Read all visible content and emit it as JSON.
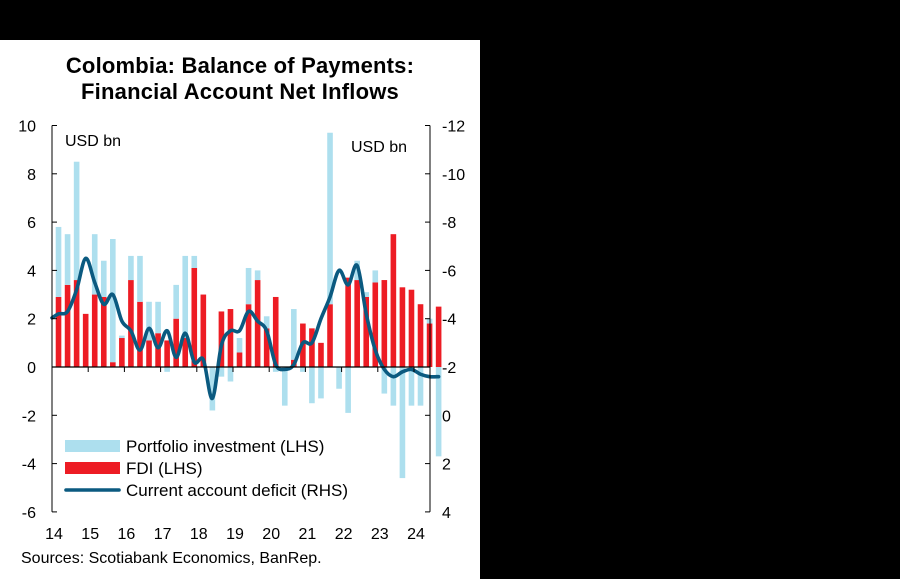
{
  "title_line1": "Colombia: Balance of Payments:",
  "title_line2": "Financial Account Net Inflows",
  "source": "Sources: Scotiabank Economics, BanRep.",
  "colors": {
    "portfolio": "#ADDFEE",
    "fdi": "#ED1C24",
    "cad": "#0B5A80",
    "background": "#FFFFFF",
    "outer": "#000000"
  },
  "chart_data": {
    "type": "bar",
    "title": "Colombia: Balance of Payments: Financial Account Net Inflows",
    "xlabel": "",
    "ylabel_left": "USD bn",
    "ylabel_right": "USD bn",
    "ylim_left": [
      -6,
      10
    ],
    "ylim_right": [
      4,
      -12
    ],
    "right_axis_inverted": true,
    "yticks_left": [
      "10",
      "8",
      "6",
      "4",
      "2",
      "0",
      "-2",
      "-4",
      "-6"
    ],
    "yticks_right": [
      "-12",
      "-10",
      "-8",
      "-6",
      "-4",
      "-2",
      "0",
      "2",
      "4"
    ],
    "xticks": [
      "14",
      "15",
      "16",
      "17",
      "18",
      "19",
      "20",
      "21",
      "22",
      "23",
      "24"
    ],
    "grid": false,
    "legend_position": "lower-left inside",
    "legend": [
      "Portfolio investment (LHS)",
      "FDI (LHS)",
      "Current account deficit (RHS)"
    ],
    "categories": [
      "2014Q1",
      "2014Q2",
      "2014Q3",
      "2014Q4",
      "2015Q1",
      "2015Q2",
      "2015Q3",
      "2015Q4",
      "2016Q1",
      "2016Q2",
      "2016Q3",
      "2016Q4",
      "2017Q1",
      "2017Q2",
      "2017Q3",
      "2017Q4",
      "2018Q1",
      "2018Q2",
      "2018Q3",
      "2018Q4",
      "2019Q1",
      "2019Q2",
      "2019Q3",
      "2019Q4",
      "2020Q1",
      "2020Q2",
      "2020Q3",
      "2020Q4",
      "2021Q1",
      "2021Q2",
      "2021Q3",
      "2021Q4",
      "2022Q1",
      "2022Q2",
      "2022Q3",
      "2022Q4",
      "2023Q1",
      "2023Q2",
      "2023Q3",
      "2023Q4",
      "2024Q1",
      "2024Q2",
      "2024Q3"
    ],
    "series": [
      {
        "name": "FDI (LHS)",
        "axis": "left",
        "values": [
          2.9,
          3.4,
          3.6,
          2.2,
          3.0,
          2.9,
          0.2,
          1.2,
          3.6,
          2.7,
          1.1,
          1.4,
          1.1,
          2.0,
          1.2,
          4.1,
          3.0,
          0.0,
          2.3,
          2.4,
          0.6,
          2.6,
          3.6,
          1.6,
          2.9,
          0.0,
          0.3,
          1.8,
          1.6,
          1.0,
          2.6,
          0.0,
          3.7,
          3.6,
          2.9,
          3.5,
          3.6,
          5.5,
          3.3,
          3.2,
          2.6,
          1.8,
          2.5
        ]
      },
      {
        "name": "Portfolio investment (LHS)",
        "axis": "left",
        "values": [
          2.9,
          2.1,
          4.9,
          0.0,
          2.5,
          1.5,
          5.1,
          0.1,
          1.0,
          1.9,
          1.6,
          1.3,
          -0.2,
          1.4,
          3.4,
          0.5,
          0.0,
          -1.8,
          -0.4,
          -0.6,
          0.6,
          1.5,
          0.4,
          0.5,
          -0.2,
          -1.6,
          2.1,
          -0.2,
          -1.5,
          -1.3,
          7.1,
          -0.9,
          -1.9,
          0.8,
          0.2,
          0.5,
          -1.1,
          -1.6,
          -4.6,
          -1.6,
          -1.6,
          0.2,
          -3.7
        ]
      },
      {
        "name": "Current account deficit (RHS)",
        "axis": "right",
        "values": [
          -4.2,
          -4.3,
          -5.2,
          -6.5,
          -5.5,
          -4.6,
          -5.0,
          -3.9,
          -3.5,
          -2.7,
          -3.6,
          -2.8,
          -3.5,
          -2.4,
          -3.4,
          -2.2,
          -2.3,
          -0.7,
          -2.9,
          -3.5,
          -3.5,
          -4.3,
          -3.9,
          -3.5,
          -2.1,
          -1.9,
          -2.1,
          -3.0,
          -3.0,
          -4.0,
          -4.9,
          -6.0,
          -5.4,
          -6.2,
          -4.2,
          -2.7,
          -1.9,
          -1.6,
          -1.8,
          -1.9,
          -1.7,
          -1.6,
          -1.6
        ]
      }
    ]
  }
}
